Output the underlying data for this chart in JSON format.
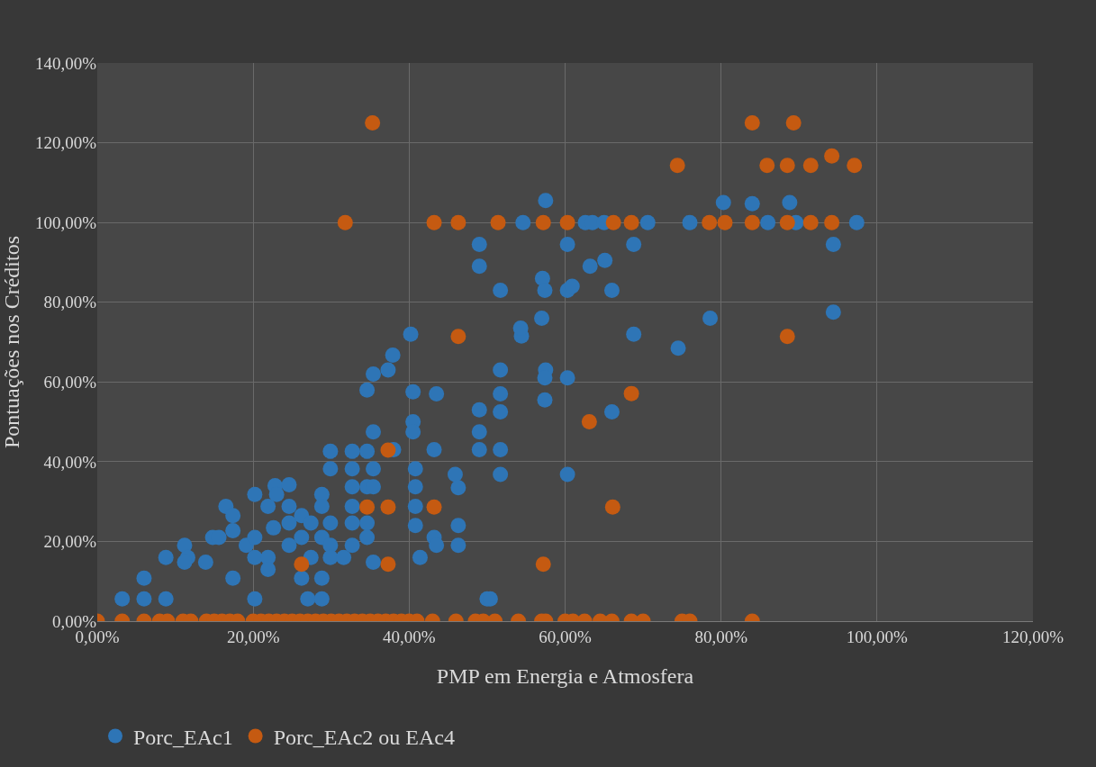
{
  "chart_data": {
    "type": "scatter",
    "xlabel": "PMP em Energia e Atmosfera",
    "ylabel": "Pontuações nos Créditos",
    "xlim": [
      0,
      120
    ],
    "ylim": [
      0,
      140
    ],
    "xticks": [
      {
        "value": 0,
        "label": "0,00%"
      },
      {
        "value": 20,
        "label": "20,00%"
      },
      {
        "value": 40,
        "label": "40,00%"
      },
      {
        "value": 60,
        "label": "60,00%"
      },
      {
        "value": 80,
        "label": "80,00%"
      },
      {
        "value": 100,
        "label": "100,00%"
      },
      {
        "value": 120,
        "label": "120,00%"
      }
    ],
    "yticks": [
      {
        "value": 0,
        "label": "0,00%"
      },
      {
        "value": 20,
        "label": "20,00%"
      },
      {
        "value": 40,
        "label": "40,00%"
      },
      {
        "value": 60,
        "label": "60,00%"
      },
      {
        "value": 80,
        "label": "80,00%"
      },
      {
        "value": 100,
        "label": "100,00%"
      },
      {
        "value": 120,
        "label": "120,00%"
      },
      {
        "value": 140,
        "label": "140,00%"
      }
    ],
    "grid": true,
    "legend": "bottom left",
    "marker": "circle",
    "series": [
      {
        "name": "Porc_EAc1",
        "color": "#2e75b6",
        "x": [
          3.2,
          6,
          6,
          8.8,
          8.8,
          11.2,
          11.6,
          11.2,
          13.9,
          14.8,
          15.6,
          16.5,
          17.4,
          17.4,
          17.4,
          19.1,
          20.2,
          20.2,
          20.2,
          20.2,
          21.9,
          21.9,
          21.9,
          22.8,
          23,
          22.6,
          24.6,
          24.6,
          24.6,
          24.6,
          26.2,
          26.2,
          26.2,
          27,
          27.4,
          27.4,
          28.8,
          28.8,
          28.8,
          28.8,
          28.8,
          29.9,
          29.9,
          29.9,
          29.9,
          29.9,
          31.6,
          32.7,
          32.7,
          32.7,
          32.7,
          32.7,
          32.7,
          34.6,
          34.6,
          34.6,
          34.6,
          34.6,
          35.4,
          35.4,
          35.4,
          35.4,
          35.4,
          37.3,
          37.9,
          40.2,
          40.5,
          43.5,
          50,
          40.5,
          38,
          43.2,
          40.5,
          40.8,
          40.8,
          40.8,
          40.8,
          41.4,
          43.2,
          43.5,
          45.9,
          46.3,
          46.3,
          46.3,
          49,
          49,
          49,
          49,
          49,
          50.4,
          51.7,
          51.7,
          51.7,
          51.7,
          51.7,
          51.7,
          54.4,
          54.3,
          54.6,
          57,
          57.1,
          57.4,
          57.5,
          57.5,
          57.4,
          57.4,
          60.3,
          60.3,
          60.9,
          60.3,
          60.3,
          62.6,
          63.5,
          63.2,
          65.1,
          65,
          66,
          66,
          68.8,
          68.8,
          70.6,
          74.5,
          76,
          78.6,
          80.3,
          84,
          86,
          88.8,
          89.6,
          94.4,
          94.4,
          97.4
        ],
        "values": [
          5.6,
          10.8,
          5.6,
          5.6,
          16,
          19,
          16,
          14.8,
          14.8,
          21,
          21,
          28.8,
          26.5,
          22.7,
          10.8,
          19,
          31.8,
          21,
          16,
          5.6,
          16,
          13,
          28.8,
          34,
          31.8,
          23.4,
          28.8,
          34.2,
          24.6,
          19,
          26.5,
          21,
          10.8,
          5.6,
          16,
          24.6,
          31.8,
          28.8,
          21,
          10.8,
          5.6,
          42.6,
          38.2,
          24.6,
          19,
          16,
          16,
          42.6,
          38.2,
          33.7,
          28.8,
          24.6,
          19,
          58,
          42.6,
          33.7,
          24.6,
          21,
          62,
          47.5,
          38.2,
          33.7,
          14.8,
          63,
          66.7,
          72,
          57.5,
          57,
          5.6,
          50,
          43,
          43,
          47.5,
          38.2,
          33.7,
          28.8,
          24,
          16,
          21,
          19,
          36.8,
          33.5,
          24,
          19,
          53,
          47.5,
          43,
          89,
          94.5,
          5.6,
          83,
          63,
          57,
          52.5,
          43,
          36.8,
          71.5,
          73.5,
          100,
          76,
          86,
          83,
          105.5,
          63,
          61,
          55.5,
          94.5,
          83,
          84,
          61,
          36.8,
          100,
          100,
          89,
          90.5,
          100,
          83,
          52.5,
          94.5,
          72,
          100,
          68.5,
          100,
          76,
          105,
          104.7,
          100,
          105,
          100,
          94.5,
          77.5,
          100
        ]
      },
      {
        "name": "Porc_EAc2 ou EAc4",
        "color": "#c55a11",
        "x": [
          0,
          3.2,
          6,
          8,
          9,
          11,
          12,
          14,
          15,
          16,
          17,
          18,
          20,
          21,
          22,
          23,
          24,
          25,
          26,
          27,
          28,
          29,
          30,
          31,
          32,
          33,
          34,
          35,
          36,
          37,
          38,
          39,
          40,
          41,
          43,
          46,
          48.5,
          49.5,
          51,
          54,
          57,
          57.5,
          60,
          61,
          62.5,
          64.5,
          66,
          68.5,
          70,
          75,
          76,
          84,
          26.2,
          34.6,
          37.3,
          37.3,
          37.3,
          43.2,
          35.3,
          31.8,
          43.2,
          46.3,
          51.4,
          57.2,
          60.3,
          66.2,
          68.5,
          46.3,
          63.1,
          66.1,
          57.2,
          68.5,
          74.4,
          78.5,
          80.5,
          84,
          84,
          85.9,
          88.5,
          89.3,
          88.5,
          88.5,
          91.5,
          91.5,
          94.2,
          94.2,
          97.1
        ],
        "values": [
          0,
          0,
          0,
          0,
          0,
          0,
          0,
          0,
          0,
          0,
          0,
          0,
          0,
          0,
          0,
          0,
          0,
          0,
          0,
          0,
          0,
          0,
          0,
          0,
          0,
          0,
          0,
          0,
          0,
          0,
          0,
          0,
          0,
          0,
          0,
          0,
          0,
          0,
          0,
          0,
          0,
          0,
          0,
          0,
          0,
          0,
          0,
          0,
          0,
          0,
          0,
          0,
          14.3,
          28.6,
          28.6,
          42.9,
          14.3,
          28.6,
          125,
          100,
          100,
          100,
          100,
          100,
          100,
          100,
          100,
          71.4,
          50,
          28.6,
          14.3,
          57.1,
          114.3,
          100,
          100,
          125,
          100,
          114.3,
          114.3,
          125,
          100,
          71.4,
          114.3,
          100,
          116.7,
          100,
          114.3
        ]
      }
    ]
  }
}
